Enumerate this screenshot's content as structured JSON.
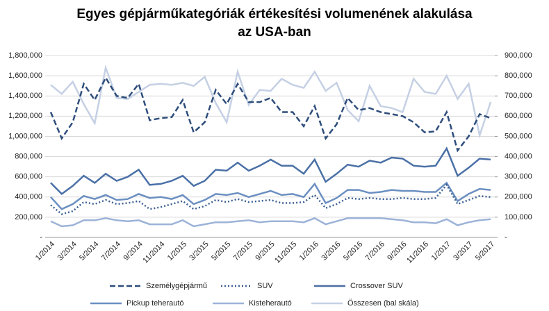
{
  "chart_data": {
    "type": "line",
    "title": [
      "Egyes gépjárműkategóriák értékesítési volumenének alakulása",
      "az USA-ban"
    ],
    "categories": [
      "1/2014",
      null,
      "3/2014",
      null,
      "5/2014",
      null,
      "7/2014",
      null,
      "9/2014",
      null,
      "11/2014",
      null,
      "1/2015",
      null,
      "3/2015",
      null,
      "5/2015",
      null,
      "7/2015",
      null,
      "9/2015",
      null,
      "11/2015",
      null,
      "1/2016",
      null,
      "3/2016",
      null,
      "5/2016",
      null,
      "7/2016",
      null,
      "9/2016",
      null,
      "11/2016",
      null,
      "1/2017",
      null,
      "3/2017",
      null,
      "5/2017"
    ],
    "series": [
      {
        "name": "Személygépjármű",
        "color": "#2e4d7b",
        "dash": "dashed",
        "width": 2.5,
        "axis": "y2",
        "values": [
          620000,
          490000,
          570000,
          760000,
          680000,
          790000,
          700000,
          690000,
          760000,
          580000,
          590000,
          595000,
          680000,
          520000,
          570000,
          730000,
          660000,
          760000,
          670000,
          670000,
          690000,
          620000,
          620000,
          550000,
          650000,
          490000,
          560000,
          690000,
          630000,
          640000,
          620000,
          610000,
          600000,
          570000,
          520000,
          525000,
          620000,
          430000,
          500000,
          610000,
          590000
        ]
      },
      {
        "name": "SUV",
        "color": "#3b5f93",
        "dash": "dotted",
        "width": 2.5,
        "axis": "y2",
        "values": [
          160000,
          115000,
          130000,
          175000,
          165000,
          185000,
          165000,
          170000,
          180000,
          140000,
          150000,
          165000,
          180000,
          140000,
          155000,
          185000,
          175000,
          190000,
          175000,
          180000,
          185000,
          170000,
          170000,
          175000,
          210000,
          145000,
          165000,
          195000,
          190000,
          195000,
          190000,
          190000,
          195000,
          190000,
          190000,
          195000,
          260000,
          165000,
          185000,
          205000,
          200000
        ]
      },
      {
        "name": "Crossover SUV",
        "color": "#4a70a6",
        "dash": "solid",
        "width": 2.5,
        "axis": "y2",
        "values": [
          270000,
          215000,
          255000,
          305000,
          270000,
          315000,
          280000,
          300000,
          335000,
          260000,
          265000,
          280000,
          305000,
          255000,
          280000,
          335000,
          330000,
          370000,
          330000,
          355000,
          385000,
          355000,
          355000,
          315000,
          385000,
          275000,
          315000,
          360000,
          350000,
          380000,
          370000,
          395000,
          390000,
          355000,
          350000,
          355000,
          440000,
          305000,
          345000,
          390000,
          385000
        ]
      },
      {
        "name": "Pickup teherautó",
        "color": "#6b8fc1",
        "dash": "solid",
        "width": 2.5,
        "axis": "y2",
        "values": [
          200000,
          140000,
          165000,
          205000,
          190000,
          210000,
          185000,
          190000,
          215000,
          195000,
          200000,
          190000,
          210000,
          165000,
          185000,
          215000,
          210000,
          220000,
          200000,
          215000,
          230000,
          210000,
          215000,
          200000,
          265000,
          170000,
          195000,
          235000,
          235000,
          220000,
          225000,
          235000,
          230000,
          230000,
          225000,
          225000,
          270000,
          180000,
          215000,
          240000,
          235000
        ]
      },
      {
        "name": "Kisteherautó",
        "color": "#9cb3d8",
        "dash": "solid",
        "width": 2.5,
        "axis": "y2",
        "values": [
          80000,
          55000,
          60000,
          85000,
          85000,
          95000,
          85000,
          80000,
          85000,
          65000,
          65000,
          65000,
          85000,
          55000,
          65000,
          75000,
          75000,
          80000,
          85000,
          75000,
          80000,
          80000,
          80000,
          75000,
          95000,
          65000,
          80000,
          95000,
          95000,
          95000,
          95000,
          90000,
          85000,
          75000,
          75000,
          70000,
          90000,
          60000,
          75000,
          85000,
          90000
        ]
      },
      {
        "name": "Összesen (bal skála)",
        "color": "#c5d0e4",
        "dash": "solid",
        "width": 2.5,
        "axis": "y",
        "values": [
          1510000,
          1420000,
          1540000,
          1320000,
          1130000,
          1680000,
          1380000,
          1370000,
          1440000,
          1510000,
          1520000,
          1510000,
          1530000,
          1500000,
          1590000,
          1330000,
          1140000,
          1640000,
          1310000,
          1460000,
          1450000,
          1570000,
          1510000,
          1480000,
          1640000,
          1450000,
          1530000,
          1260000,
          1150000,
          1500000,
          1300000,
          1280000,
          1240000,
          1570000,
          1440000,
          1420000,
          1600000,
          1370000,
          1520000,
          1010000,
          1340000
        ]
      }
    ],
    "ylim": [
      0,
      1800000
    ],
    "yticks": [
      {
        "value": 0,
        "label": "-"
      },
      {
        "value": 200000,
        "label": "200,000"
      },
      {
        "value": 400000,
        "label": "400,000"
      },
      {
        "value": 600000,
        "label": "600,000"
      },
      {
        "value": 800000,
        "label": "800,000"
      },
      {
        "value": 1000000,
        "label": "1,000,000"
      },
      {
        "value": 1200000,
        "label": "1,200,000"
      },
      {
        "value": 1400000,
        "label": "1,400,000"
      },
      {
        "value": 1600000,
        "label": "1,600,000"
      },
      {
        "value": 1800000,
        "label": "1,800,000"
      }
    ],
    "y2lim": [
      0,
      900000
    ],
    "y2ticks": [
      {
        "value": 0,
        "label": "-"
      },
      {
        "value": 100000,
        "label": "100,000"
      },
      {
        "value": 200000,
        "label": "200,000"
      },
      {
        "value": 300000,
        "label": "300,000"
      },
      {
        "value": 400000,
        "label": "400,000"
      },
      {
        "value": 500000,
        "label": "500,000"
      },
      {
        "value": 600000,
        "label": "600,000"
      },
      {
        "value": 700000,
        "label": "700,000"
      },
      {
        "value": 800000,
        "label": "800,000"
      },
      {
        "value": 900000,
        "label": "900,000"
      }
    ],
    "grid": true
  }
}
